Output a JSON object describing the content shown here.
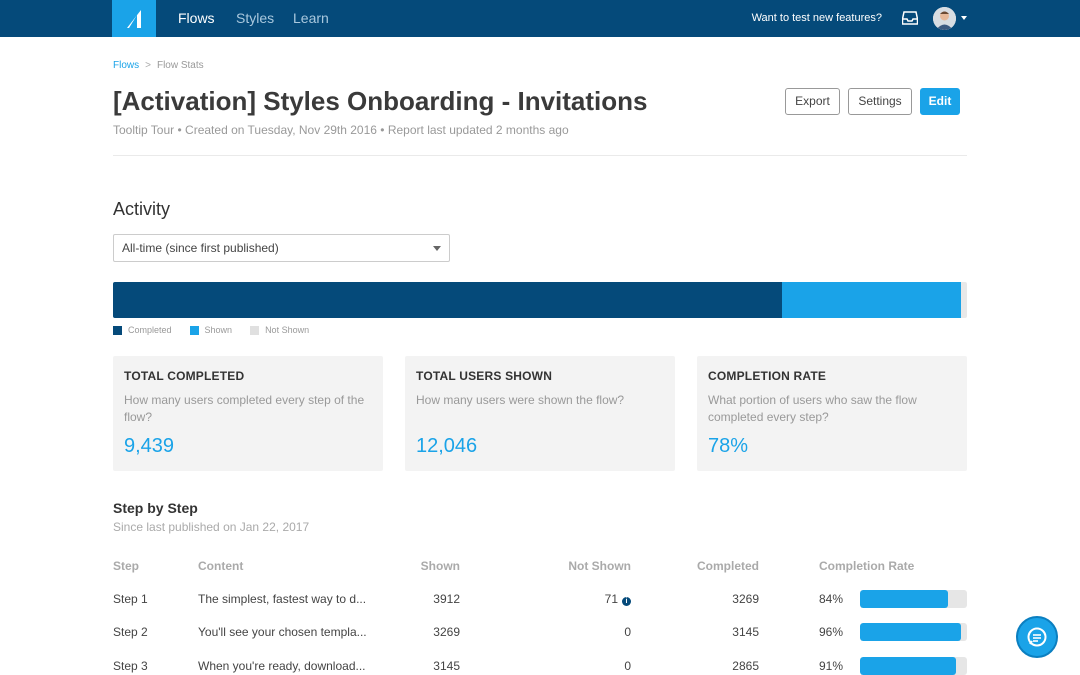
{
  "nav": {
    "links": [
      "Flows",
      "Styles",
      "Learn"
    ],
    "active": "Flows",
    "test_features": "Want to test new features?"
  },
  "breadcrumb": {
    "root": "Flows",
    "separator": ">",
    "current": "Flow Stats"
  },
  "header": {
    "title": "[Activation] Styles Onboarding - Invitations",
    "type": "Tooltip Tour",
    "created": "Created on Tuesday, Nov 29th 2016",
    "updated": "Report last updated 2 months ago",
    "bullet": "•",
    "export_label": "Export",
    "settings_label": "Settings",
    "edit_label": "Edit"
  },
  "activity": {
    "title": "Activity",
    "range_select": "All-time (since first published)",
    "bar": {
      "completed_fraction": 0.7836,
      "shown_fraction": 0.2164
    },
    "legend": [
      "Completed",
      "Shown",
      "Not Shown"
    ]
  },
  "cards": [
    {
      "title": "TOTAL COMPLETED",
      "desc": "How many users completed every step of the flow?",
      "value": "9,439"
    },
    {
      "title": "TOTAL USERS SHOWN",
      "desc": "How many users were shown the flow?",
      "value": "12,046"
    },
    {
      "title": "COMPLETION RATE",
      "desc": "What portion of users who saw the flow completed every step?",
      "value": "78%"
    }
  ],
  "step_by_step": {
    "title": "Step by Step",
    "since": "Since last published on Jan 22, 2017",
    "columns": [
      "Step",
      "Content",
      "Shown",
      "Not Shown",
      "Completed",
      "Completion Rate"
    ],
    "rows": [
      {
        "step": "Step 1",
        "content": "The simplest, fastest way to d...",
        "shown": "3912",
        "not_shown": "71",
        "completed": "3269",
        "rate": "84%",
        "rate_value": 0.84
      },
      {
        "step": "Step 2",
        "content": "You'll see your chosen templa...",
        "shown": "3269",
        "not_shown": "0",
        "completed": "3145",
        "rate": "96%",
        "rate_value": 0.96
      },
      {
        "step": "Step 3",
        "content": "When you're ready, download...",
        "shown": "3145",
        "not_shown": "0",
        "completed": "2865",
        "rate": "91%",
        "rate_value": 0.91
      }
    ]
  },
  "colors": {
    "nav": "#054a7a",
    "accent": "#1aa3e8",
    "completed": "#054a7a",
    "shown": "#1aa3e8",
    "not_shown": "#e8e8e8"
  },
  "icons": [
    "logo-icon",
    "inbox-icon",
    "avatar",
    "caret-down-icon",
    "info-icon",
    "chat-icon"
  ]
}
